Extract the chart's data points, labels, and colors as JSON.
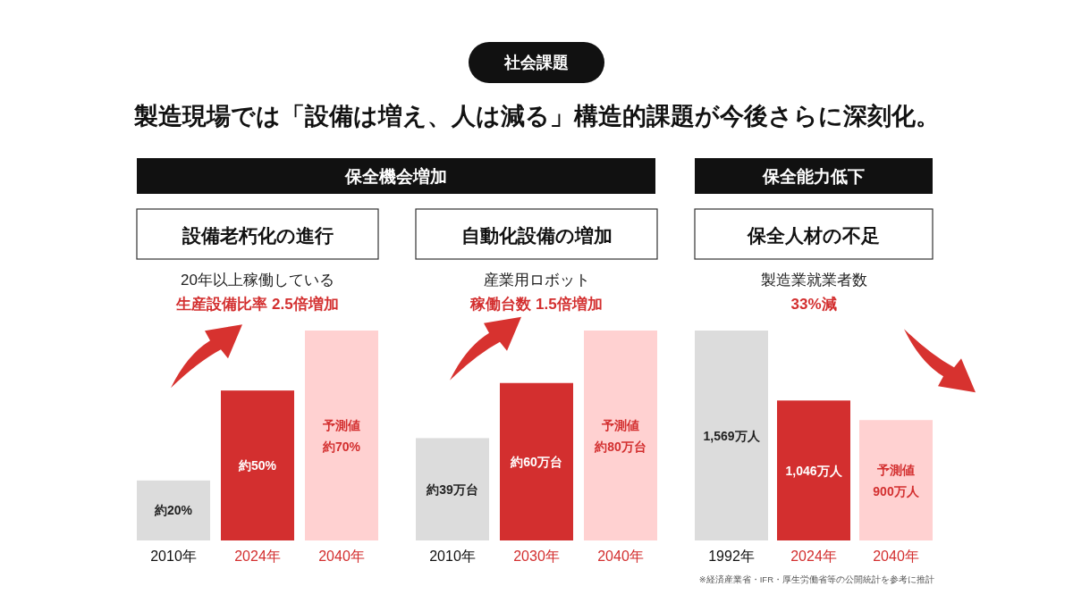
{
  "chart_data": [
    {
      "type": "bar",
      "title": "設備老朽化の進行",
      "subtitle": "20年以上稼働している",
      "categories": [
        "2010年",
        "2024年",
        "2040年"
      ],
      "values": [
        20,
        50,
        70
      ],
      "colors": [
        "#dcdcdc",
        "#d32f2f",
        "#ffd1d1"
      ],
      "value_labels": [
        "約20%",
        "約50%",
        "約70%"
      ],
      "annotations": [
        "社会課題",
        "製造現場では「設備は増え、人は減る」構造的課題が今後さらに深刻化。",
        "保全機会増加",
        "生産設備比率 2.5倍増加",
        "予測値"
      ]
    },
    {
      "type": "bar",
      "title": "自動化設備の増加",
      "subtitle": "産業用ロボット",
      "categories": [
        "2010年",
        "2030年",
        "2040年"
      ],
      "values": [
        39,
        60,
        80
      ],
      "colors": [
        "#dcdcdc",
        "#d32f2f",
        "#ffd1d1"
      ],
      "value_labels": [
        "約39万台",
        "約60万台",
        "約80万台"
      ],
      "annotations": [
        "稼働台数 1.5倍増加",
        "予測値"
      ]
    },
    {
      "type": "bar",
      "title": "保全人材の不足",
      "subtitle": "製造業就業者数",
      "categories": [
        "1992年",
        "2024年",
        "2040年"
      ],
      "values": [
        1569,
        1046,
        900
      ],
      "colors": [
        "#dcdcdc",
        "#d32f2f",
        "#ffd1d1"
      ],
      "value_labels": [
        "1,569万人",
        "1,046万人",
        "900万人"
      ],
      "annotations": [
        "保全能力低下",
        "※経済産業省・IFR・厚生労働省等の公開統計を参考に推計",
        "33%減",
        "予測値"
      ]
    }
  ]
}
